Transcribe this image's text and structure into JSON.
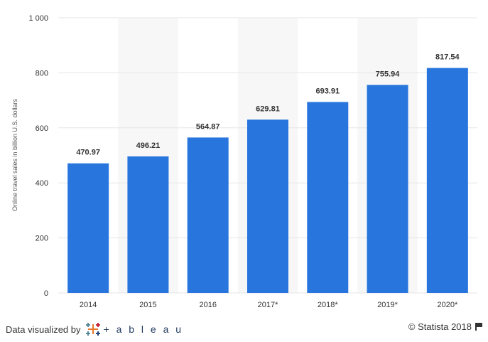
{
  "chart_data": {
    "type": "bar",
    "categories": [
      "2014",
      "2015",
      "2016",
      "2017*",
      "2018*",
      "2019*",
      "2020*"
    ],
    "values": [
      470.97,
      496.21,
      564.87,
      629.81,
      693.91,
      755.94,
      817.54
    ],
    "value_labels": [
      "470.97",
      "496.21",
      "564.87",
      "629.81",
      "693.91",
      "755.94",
      "817.54"
    ],
    "ylabel": "Online travel sales in billion U.S. dollars",
    "ylim": [
      0,
      1000
    ],
    "yticks": [
      0,
      200,
      400,
      600,
      800,
      1000
    ],
    "ytick_labels": [
      "0",
      "200",
      "400",
      "600",
      "800",
      "1 000"
    ],
    "grid": true,
    "colors": {
      "bar": "#2876dd",
      "grid": "#e6e6e6",
      "band": "#f7f7f7"
    }
  },
  "footer": {
    "visualized_by": "Data visualized by",
    "tableau": "+ a b l e a u",
    "copyright": "© Statista 2018"
  }
}
